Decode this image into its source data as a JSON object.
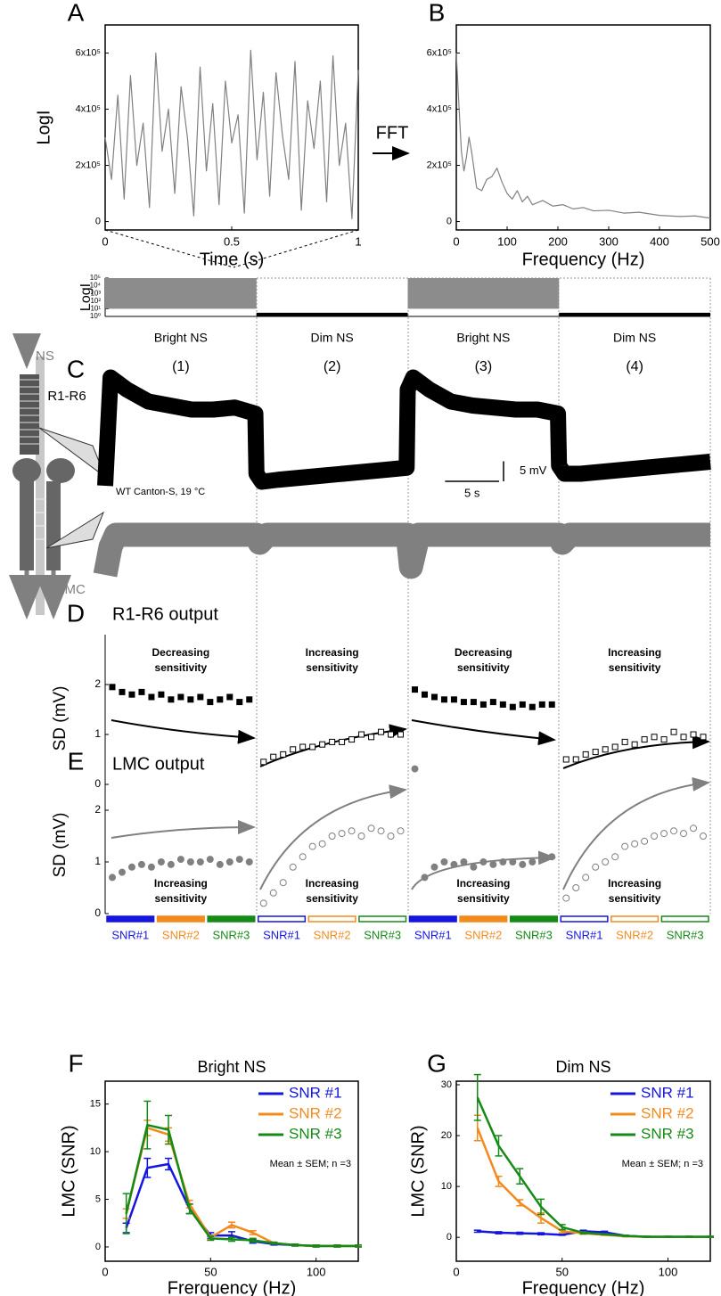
{
  "chart_data": [
    {
      "panel": "A",
      "type": "line",
      "ylabel": "LogI",
      "xlabel": "Time (s)",
      "color": "#808080",
      "x": [
        0,
        0.025,
        0.05,
        0.075,
        0.1,
        0.125,
        0.15,
        0.175,
        0.2,
        0.225,
        0.25,
        0.275,
        0.3,
        0.325,
        0.35,
        0.375,
        0.4,
        0.425,
        0.45,
        0.475,
        0.5,
        0.525,
        0.55,
        0.575,
        0.6,
        0.625,
        0.65,
        0.675,
        0.7,
        0.725,
        0.75,
        0.775,
        0.8,
        0.825,
        0.85,
        0.875,
        0.9,
        0.925,
        0.95,
        0.975,
        1
      ],
      "values": [
        300000,
        150000,
        450000,
        80000,
        520000,
        200000,
        350000,
        50000,
        600000,
        250000,
        400000,
        100000,
        480000,
        300000,
        20000,
        550000,
        180000,
        420000,
        60000,
        500000,
        280000,
        380000,
        30000,
        610000,
        220000,
        460000,
        90000,
        530000,
        310000,
        150000,
        570000,
        40000,
        430000,
        260000,
        500000,
        70000,
        590000,
        200000,
        350000,
        10000,
        540000
      ],
      "xlim": [
        0,
        1
      ],
      "xticks": [
        0,
        0.5,
        1
      ],
      "ylim": [
        -30000,
        700000
      ],
      "yticks": [
        0,
        {
          "value": 200000,
          "label": "2x10⁵"
        },
        {
          "value": 400000,
          "label": "4x10⁵"
        },
        {
          "value": 600000,
          "label": "6x10⁵"
        }
      ]
    },
    {
      "panel": "B",
      "type": "line",
      "xlabel": "Frequency (Hz)",
      "annotation": "FFT",
      "color": "#808080",
      "x": [
        0,
        5,
        10,
        15,
        20,
        25,
        30,
        40,
        50,
        60,
        70,
        80,
        90,
        100,
        110,
        120,
        130,
        140,
        150,
        170,
        190,
        210,
        230,
        250,
        270,
        300,
        330,
        360,
        400,
        440,
        470,
        500
      ],
      "values": [
        600000,
        420000,
        250000,
        180000,
        230000,
        300000,
        250000,
        120000,
        110000,
        150000,
        160000,
        190000,
        140000,
        100000,
        80000,
        110000,
        70000,
        90000,
        60000,
        75000,
        55000,
        60000,
        45000,
        50000,
        38000,
        40000,
        30000,
        33000,
        22000,
        18000,
        20000,
        12000
      ],
      "xlim": [
        0,
        500
      ],
      "xticks": [
        0,
        100,
        200,
        300,
        400,
        500
      ],
      "ylim": [
        -30000,
        700000
      ],
      "yticks": [
        0,
        {
          "value": 200000,
          "label": "2x10⁵"
        },
        {
          "value": 400000,
          "label": "4x10⁵"
        },
        {
          "value": 600000,
          "label": "6x10⁵"
        }
      ]
    },
    {
      "type": "range",
      "ylabel": "LogI",
      "log_scale": true,
      "categories": [
        "Bright NS",
        "Dim NS",
        "Bright NS",
        "Dim NS"
      ],
      "low": [
        10,
        1.5,
        10,
        1.5
      ],
      "high": [
        100000,
        3,
        100000,
        3
      ],
      "colors": [
        "#8c8c8c",
        "#000000",
        "#8c8c8c",
        "#000000"
      ],
      "ylim": [
        1,
        100000
      ],
      "yticks": [
        {
          "value": 1,
          "label": "10⁰"
        },
        {
          "value": 10,
          "label": "10¹"
        },
        {
          "value": 100,
          "label": "10²"
        },
        {
          "value": 1000,
          "label": "10³"
        },
        {
          "value": 10000,
          "label": "10⁴"
        },
        {
          "value": 100000,
          "label": "10⁵"
        }
      ]
    },
    {
      "panel": "C",
      "type": "trace",
      "stimulus_label": "NS",
      "conditions": [
        "(1)",
        "(2)",
        "(3)",
        "(4)"
      ],
      "annotation": "WT Canton-S, 19 °C",
      "xlim": [
        0,
        56
      ],
      "scale_bars": [
        {
          "value": 5,
          "label": "5 mV"
        },
        {
          "value": 5,
          "label": "5 s"
        }
      ],
      "series": [
        {
          "name": "R1-R6",
          "color": "#000000",
          "ripple": 2,
          "x": [
            0,
            0.5,
            2,
            4,
            6,
            8,
            10,
            12,
            13.9,
            14,
            14.5,
            16,
            18,
            20,
            22,
            24,
            26,
            27.9,
            28,
            28.5,
            30,
            32,
            34,
            36,
            38,
            40,
            41.9,
            42,
            42.5,
            44,
            46,
            48,
            50,
            52,
            54,
            56
          ],
          "values": [
            0,
            27,
            24,
            21,
            20,
            19,
            19,
            19.5,
            18,
            3,
            1,
            1.5,
            2,
            2.5,
            3,
            3.5,
            4,
            4.5,
            24,
            27,
            24,
            21,
            20,
            19.5,
            19,
            19,
            18,
            5,
            3,
            3,
            3.5,
            4,
            4.5,
            5,
            5.5,
            6
          ]
        },
        {
          "name": "LMC",
          "color": "#808080",
          "ripple": 3,
          "x": [
            0,
            0.5,
            1,
            14,
            14.3,
            15,
            28,
            28.3,
            29,
            42,
            42.3,
            43,
            56
          ],
          "values": [
            -10,
            -3,
            0,
            0,
            -2,
            0,
            0,
            -8,
            0,
            0,
            -2,
            0,
            0
          ]
        }
      ]
    },
    {
      "panel": "D",
      "type": "scatter",
      "title": "R1-R6 output",
      "ylabel": "SD (mV)",
      "color": "#000000",
      "marker": "square",
      "ylim": [
        0,
        3
      ],
      "yticks": [
        0,
        1,
        2
      ],
      "segments": [
        {
          "filled": true,
          "annotation": [
            "Decreasing",
            "sensitivity"
          ],
          "values": [
            1.95,
            1.85,
            1.8,
            1.85,
            1.75,
            1.8,
            1.7,
            1.75,
            1.7,
            1.75,
            1.65,
            1.7,
            1.75,
            1.65,
            1.7
          ]
        },
        {
          "filled": false,
          "annotation": [
            "Increasing",
            "sensitivity"
          ],
          "values": [
            0.45,
            0.55,
            0.6,
            0.7,
            0.75,
            0.75,
            0.8,
            0.85,
            0.85,
            0.9,
            1.0,
            0.95,
            1.05,
            1.0,
            1.0
          ]
        },
        {
          "filled": true,
          "annotation": [
            "Decreasing",
            "sensitivity"
          ],
          "values": [
            1.9,
            1.8,
            1.75,
            1.7,
            1.7,
            1.65,
            1.65,
            1.6,
            1.65,
            1.6,
            1.55,
            1.6,
            1.55,
            1.6,
            1.6
          ]
        },
        {
          "filled": false,
          "annotation": [
            "Increasing",
            "sensitivity"
          ],
          "values": [
            0.5,
            0.5,
            0.6,
            0.65,
            0.7,
            0.75,
            0.85,
            0.8,
            0.9,
            0.95,
            0.9,
            1.05,
            0.95,
            1.0,
            0.95
          ]
        }
      ]
    },
    {
      "panel": "E",
      "type": "scatter",
      "title": "LMC output",
      "ylabel": "SD (mV)",
      "color": "#808080",
      "marker": "circle",
      "ylim": [
        0,
        3
      ],
      "yticks": [
        0,
        1,
        2
      ],
      "segments": [
        {
          "filled": true,
          "annotation": [
            "Increasing",
            "sensitivity"
          ],
          "values": [
            0.7,
            0.8,
            0.9,
            0.95,
            0.9,
            1.0,
            0.95,
            1.05,
            1.0,
            1.0,
            1.05,
            0.95,
            1.0,
            1.05,
            1.0
          ]
        },
        {
          "filled": false,
          "annotation": [
            "Increasing",
            "sensitivity"
          ],
          "values": [
            0.2,
            0.4,
            0.6,
            0.9,
            1.1,
            1.3,
            1.35,
            1.5,
            1.55,
            1.6,
            1.5,
            1.65,
            1.6,
            1.5,
            1.6
          ]
        },
        {
          "filled": true,
          "annotation": [
            "Increasing",
            "sensitivity"
          ],
          "values": [
            2.8,
            0.7,
            0.9,
            1.0,
            0.95,
            1.0,
            0.9,
            1.0,
            0.95,
            1.0,
            1.0,
            0.95,
            1.0,
            1.05,
            1.1
          ]
        },
        {
          "filled": false,
          "annotation": [
            "Increasing",
            "sensitivity"
          ],
          "values": [
            0.3,
            0.5,
            0.7,
            0.9,
            1.0,
            1.1,
            1.3,
            1.35,
            1.4,
            1.5,
            1.55,
            1.6,
            1.55,
            1.65,
            1.5
          ]
        }
      ]
    },
    {
      "type": "legend-bar",
      "labels": [
        "SNR#1",
        "SNR#2",
        "SNR#3",
        "SNR#1",
        "SNR#2",
        "SNR#3",
        "SNR#1",
        "SNR#2",
        "SNR#3",
        "SNR#1",
        "SNR#2",
        "SNR#3"
      ],
      "colors": [
        "#1515e0",
        "#f28a1e",
        "#168a16",
        "#1515e0",
        "#f28a1e",
        "#168a16",
        "#1515e0",
        "#f28a1e",
        "#168a16",
        "#1515e0",
        "#f28a1e",
        "#168a16"
      ],
      "filled": [
        true,
        true,
        true,
        false,
        false,
        false,
        true,
        true,
        true,
        false,
        false,
        false
      ]
    },
    {
      "panel": "F",
      "type": "line",
      "title": "Bright NS",
      "xlabel": "Frerquency (Hz)",
      "ylabel": "LMC (SNR)",
      "note": "Mean ± SEM; n =3",
      "x": [
        10,
        20,
        30,
        40,
        50,
        60,
        70,
        80,
        90,
        100,
        110,
        120
      ],
      "series": [
        {
          "name": "SNR #1",
          "color": "#1515e0",
          "values": [
            2,
            8.3,
            8.7,
            4,
            1.2,
            1.2,
            0.6,
            0.3,
            0.2,
            0.1,
            0.1,
            0.1
          ],
          "errors": [
            0.5,
            1,
            0.6,
            0.5,
            0.3,
            0.4,
            0.2,
            0.1,
            0.1,
            0.1,
            0.1,
            0.1
          ]
        },
        {
          "name": "SNR #2",
          "color": "#f28a1e",
          "values": [
            3.5,
            12.5,
            11.8,
            4.5,
            1.0,
            2.3,
            1.5,
            0.4,
            0.2,
            0.1,
            0.1,
            0.1
          ],
          "errors": [
            0.5,
            0.8,
            0.7,
            0.4,
            0.2,
            0.3,
            0.2,
            0.1,
            0.1,
            0.1,
            0.1,
            0.1
          ]
        },
        {
          "name": "SNR #3",
          "color": "#168a16",
          "values": [
            3.5,
            12.8,
            12.3,
            4,
            0.9,
            0.8,
            0.7,
            0.4,
            0.2,
            0.1,
            0.1,
            0.1
          ],
          "errors": [
            2.1,
            2.5,
            1.5,
            0.5,
            0.2,
            0.2,
            0.2,
            0.1,
            0.1,
            0.1,
            0.1,
            0.1
          ]
        }
      ],
      "xlim": [
        0,
        120
      ],
      "xticks": [
        0,
        50,
        100
      ],
      "ylim": [
        -1.5,
        17.4
      ],
      "yticks": [
        0,
        5,
        10,
        15
      ]
    },
    {
      "panel": "G",
      "type": "line",
      "title": "Dim NS",
      "xlabel": "Frequency (Hz)",
      "ylabel": "LMC (SNR)",
      "note": "Mean ± SEM; n =3",
      "x": [
        10,
        20,
        30,
        40,
        50,
        60,
        70,
        80,
        90,
        100,
        110,
        120
      ],
      "series": [
        {
          "name": "SNR #1",
          "color": "#1515e0",
          "values": [
            1.2,
            0.9,
            0.8,
            0.7,
            0.5,
            1.2,
            1.0,
            0.3,
            0.1,
            0.1,
            0.1,
            0.1
          ],
          "errors": [
            0.2,
            0.2,
            0.2,
            0.2,
            0.1,
            0.2,
            0.2,
            0.1,
            0.1,
            0.1,
            0.1,
            0.1
          ]
        },
        {
          "name": "SNR #2",
          "color": "#f28a1e",
          "values": [
            21.5,
            11,
            6.8,
            3.8,
            1.2,
            0.8,
            0.5,
            0.2,
            0.1,
            0.1,
            0.1,
            0.1
          ],
          "errors": [
            2.5,
            1,
            0.6,
            1,
            0.3,
            0.2,
            0.1,
            0.1,
            0.1,
            0.1,
            0.1,
            0.1
          ]
        },
        {
          "name": "SNR #3",
          "color": "#168a16",
          "values": [
            27.5,
            18,
            12,
            6,
            2,
            0.9,
            0.6,
            0.3,
            0.1,
            0.1,
            0.1,
            0.1
          ],
          "errors": [
            4.5,
            2,
            1.5,
            1.5,
            0.5,
            0.2,
            0.1,
            0.1,
            0.1,
            0.1,
            0.1,
            0.1
          ]
        }
      ],
      "xlim": [
        0,
        120
      ],
      "xticks": [
        0,
        50,
        100
      ],
      "ylim": [
        -4.7,
        30.7
      ],
      "yticks": [
        0,
        10,
        20,
        30
      ]
    }
  ]
}
